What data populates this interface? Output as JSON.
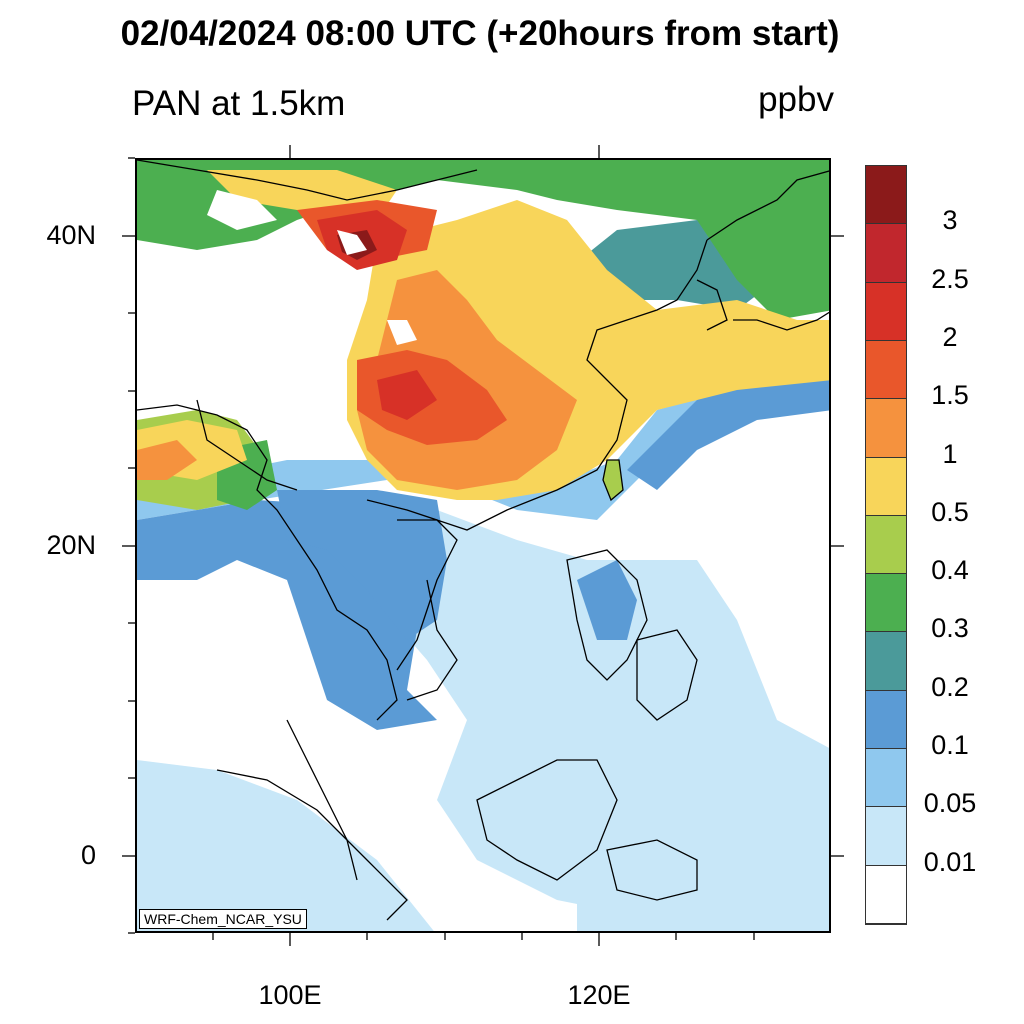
{
  "header": {
    "title": "02/04/2024 08:00 UTC (+20hours from start)",
    "variable": "PAN at 1.5km",
    "units": "ppbv"
  },
  "map": {
    "watermark": "WRF-Chem_NCAR_YSU",
    "lat_labels": [
      "40N",
      "20N",
      "0"
    ],
    "lon_labels": [
      "100E",
      "120E"
    ]
  },
  "colorbar": {
    "labels": [
      "3",
      "2.5",
      "2",
      "1.5",
      "1",
      "0.5",
      "0.4",
      "0.3",
      "0.2",
      "0.1",
      "0.05",
      "0.01"
    ],
    "colors": [
      "#8b1a1a",
      "#c1272d",
      "#d73127",
      "#e9572b",
      "#f5923e",
      "#f8d55a",
      "#a8cd4d",
      "#4caf50",
      "#4b9a9a",
      "#5b9bd5",
      "#8fc8ee",
      "#c8e7f8",
      "#ffffff"
    ]
  }
}
